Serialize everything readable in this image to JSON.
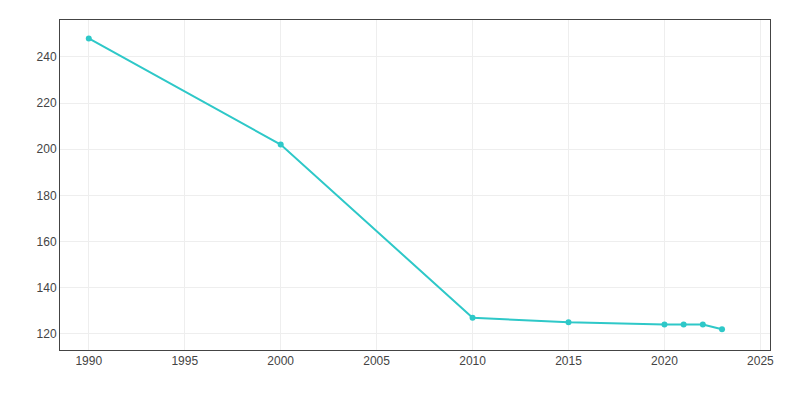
{
  "chart_data": {
    "type": "line",
    "x": [
      1990,
      2000,
      2010,
      2015,
      2020,
      2021,
      2022,
      2023
    ],
    "values": [
      248,
      202,
      127,
      125,
      124,
      124,
      124,
      122
    ],
    "color": "#2ec8c8",
    "marker": "circle",
    "xlim": [
      1988.5,
      2025.5
    ],
    "ylim": [
      113,
      256
    ],
    "xticks": [
      1990,
      1995,
      2000,
      2005,
      2010,
      2015,
      2020,
      2025
    ],
    "yticks": [
      120,
      140,
      160,
      180,
      200,
      220,
      240
    ],
    "grid": true
  }
}
